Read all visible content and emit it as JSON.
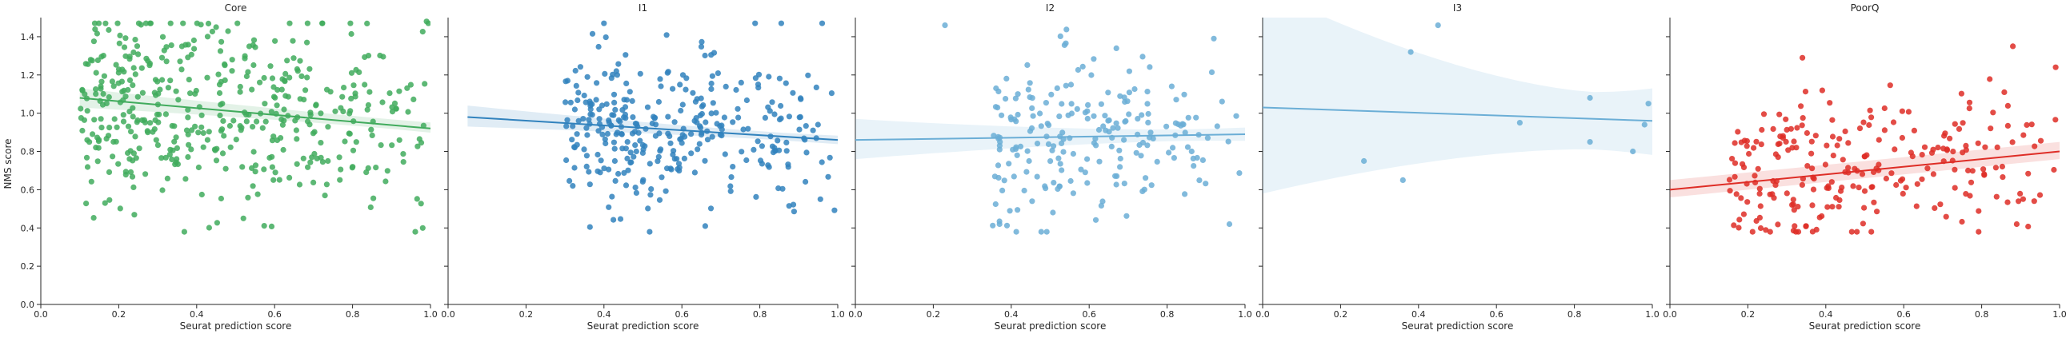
{
  "figure": {
    "ylabel": "NMS score",
    "xlabel": "Seurat prediction score"
  },
  "chart_data": [
    {
      "type": "scatter",
      "title": "Core",
      "xlabel": "Seurat prediction score",
      "ylabel": "NMS score",
      "xlim": [
        0,
        1
      ],
      "ylim": [
        0,
        1.5
      ],
      "xticks": [
        0.0,
        0.2,
        0.4,
        0.6,
        0.8,
        1.0
      ],
      "yticks": [
        0.0,
        0.2,
        0.4,
        0.6,
        0.8,
        1.0,
        1.2,
        1.4
      ],
      "color": "#41ab5d",
      "n_points": 450,
      "x_range": [
        0.1,
        1.0
      ],
      "y_center": 0.98,
      "y_spread": 0.24,
      "regression": {
        "x": [
          0.1,
          1.0
        ],
        "y": [
          1.08,
          0.92
        ]
      },
      "ci": {
        "lower": [
          1.03,
          0.9
        ],
        "upper": [
          1.13,
          0.95
        ]
      },
      "highlight_points": [
        [
          0.28,
          1.26
        ],
        [
          0.45,
          1.45
        ],
        [
          0.52,
          0.45
        ],
        [
          0.98,
          0.4
        ],
        [
          0.99,
          1.48
        ]
      ],
      "grid": false
    },
    {
      "type": "scatter",
      "title": "I1",
      "xlabel": "Seurat prediction score",
      "ylabel": "NMS score",
      "xlim": [
        0,
        1
      ],
      "ylim": [
        0,
        1.5
      ],
      "xticks": [
        0.0,
        0.2,
        0.4,
        0.6,
        0.8,
        1.0
      ],
      "yticks": [
        0.0,
        0.2,
        0.4,
        0.6,
        0.8,
        1.0,
        1.2,
        1.4
      ],
      "color": "#3182bd",
      "n_points": 320,
      "x_range": [
        0.3,
        1.0
      ],
      "y_center": 0.9,
      "y_spread": 0.2,
      "regression": {
        "x": [
          0.05,
          1.0
        ],
        "y": [
          0.98,
          0.86
        ]
      },
      "ci": {
        "lower": [
          0.93,
          0.84
        ],
        "upper": [
          1.04,
          0.88
        ]
      },
      "highlight_points": [
        [
          0.4,
          1.47
        ],
        [
          0.96,
          1.47
        ],
        [
          0.32,
          0.62
        ],
        [
          0.66,
          0.41
        ]
      ],
      "grid": false
    },
    {
      "type": "scatter",
      "title": "I2",
      "xlabel": "Seurat prediction score",
      "ylabel": "NMS score",
      "xlim": [
        0,
        1
      ],
      "ylim": [
        0,
        1.5
      ],
      "xticks": [
        0.0,
        0.2,
        0.4,
        0.6,
        0.8,
        1.0
      ],
      "yticks": [
        0.0,
        0.2,
        0.4,
        0.6,
        0.8,
        1.0,
        1.2,
        1.4
      ],
      "color": "#6baed6",
      "n_points": 210,
      "x_range": [
        0.35,
        1.0
      ],
      "y_center": 0.88,
      "y_spread": 0.22,
      "regression": {
        "x": [
          0.0,
          1.0
        ],
        "y": [
          0.86,
          0.89
        ]
      },
      "ci": {
        "lower": [
          0.76,
          0.86
        ],
        "upper": [
          0.97,
          0.92
        ]
      },
      "highlight_points": [
        [
          0.23,
          1.46
        ],
        [
          0.92,
          1.39
        ],
        [
          0.37,
          0.42
        ],
        [
          0.96,
          0.42
        ]
      ],
      "grid": false
    },
    {
      "type": "scatter",
      "title": "I3",
      "xlabel": "Seurat prediction score",
      "ylabel": "NMS score",
      "xlim": [
        0,
        1
      ],
      "ylim": [
        0,
        1.5
      ],
      "xticks": [
        0.0,
        0.2,
        0.4,
        0.6,
        0.8,
        1.0
      ],
      "yticks": [
        0.0,
        0.2,
        0.4,
        0.6,
        0.8,
        1.0,
        1.2,
        1.4
      ],
      "color": "#6baed6",
      "n_points": 10,
      "points": [
        [
          0.26,
          0.75
        ],
        [
          0.36,
          0.65
        ],
        [
          0.38,
          1.32
        ],
        [
          0.45,
          1.46
        ],
        [
          0.66,
          0.95
        ],
        [
          0.84,
          1.08
        ],
        [
          0.84,
          0.85
        ],
        [
          0.95,
          0.8
        ],
        [
          0.98,
          0.94
        ],
        [
          0.99,
          1.05
        ]
      ],
      "regression": {
        "x": [
          0.0,
          1.0
        ],
        "y": [
          1.03,
          0.96
        ]
      },
      "ci": {
        "lower": [
          0.58,
          0.8
        ],
        "upper": [
          1.65,
          1.1
        ]
      },
      "grid": false
    },
    {
      "type": "scatter",
      "title": "PoorQ",
      "xlabel": "Seurat prediction score",
      "ylabel": "NMS score",
      "xlim": [
        0,
        1
      ],
      "ylim": [
        0,
        1.5
      ],
      "xticks": [
        0.0,
        0.2,
        0.4,
        0.6,
        0.8,
        1.0
      ],
      "yticks": [
        0.0,
        0.2,
        0.4,
        0.6,
        0.8,
        1.0,
        1.2,
        1.4
      ],
      "color": "#de2d26",
      "n_points": 240,
      "x_range": [
        0.15,
        1.0
      ],
      "y_center": 0.66,
      "y_spread": 0.2,
      "regression": {
        "x": [
          0.0,
          1.0
        ],
        "y": [
          0.6,
          0.8
        ]
      },
      "ci": {
        "lower": [
          0.56,
          0.76
        ],
        "upper": [
          0.65,
          0.85
        ]
      },
      "highlight_points": [
        [
          0.34,
          1.29
        ],
        [
          0.88,
          1.35
        ],
        [
          0.99,
          1.24
        ],
        [
          0.89,
          0.42
        ],
        [
          0.32,
          0.41
        ]
      ],
      "grid": false
    }
  ]
}
